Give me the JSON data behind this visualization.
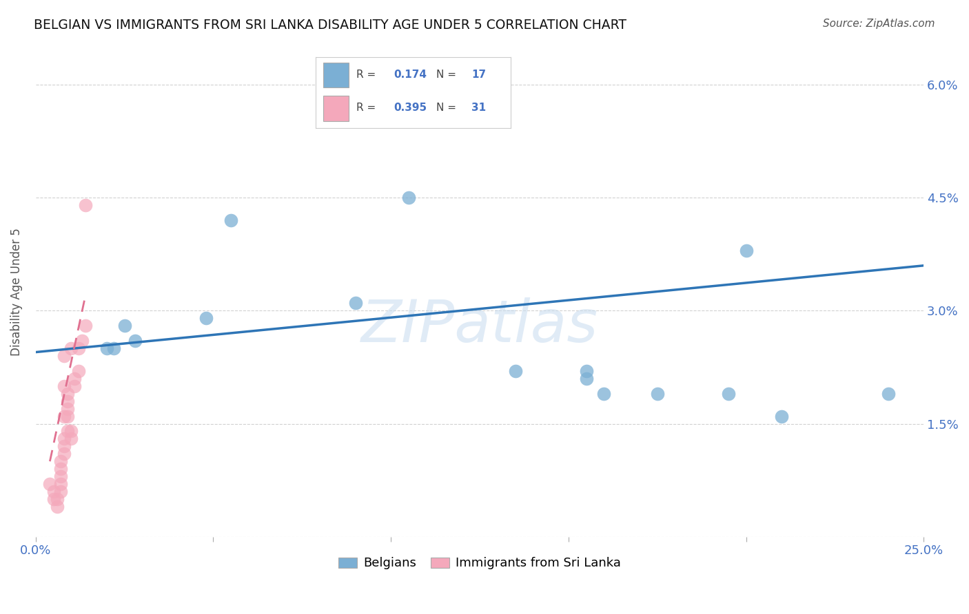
{
  "title": "BELGIAN VS IMMIGRANTS FROM SRI LANKA DISABILITY AGE UNDER 5 CORRELATION CHART",
  "source": "Source: ZipAtlas.com",
  "ylabel_label": "Disability Age Under 5",
  "watermark": "ZIPatlas",
  "xlim": [
    0.0,
    0.25
  ],
  "ylim": [
    0.0,
    0.065
  ],
  "xticks": [
    0.0,
    0.05,
    0.1,
    0.15,
    0.2,
    0.25
  ],
  "yticks": [
    0.0,
    0.015,
    0.03,
    0.045,
    0.06
  ],
  "ytick_labels": [
    "",
    "1.5%",
    "3.0%",
    "4.5%",
    "6.0%"
  ],
  "xtick_labels": [
    "0.0%",
    "",
    "",
    "",
    "",
    "25.0%"
  ],
  "blue_color": "#7BAFD4",
  "pink_color": "#F4A8BB",
  "trendline_blue_color": "#2E75B6",
  "trendline_pink_color": "#E07090",
  "belgians_x": [
    0.02,
    0.022,
    0.025,
    0.028,
    0.048,
    0.055,
    0.09,
    0.105,
    0.135,
    0.155,
    0.155,
    0.16,
    0.175,
    0.195,
    0.21,
    0.24,
    0.2
  ],
  "belgians_y": [
    0.025,
    0.025,
    0.028,
    0.026,
    0.029,
    0.042,
    0.031,
    0.045,
    0.022,
    0.022,
    0.021,
    0.019,
    0.019,
    0.019,
    0.016,
    0.019,
    0.038
  ],
  "srilanka_x": [
    0.004,
    0.005,
    0.005,
    0.006,
    0.006,
    0.007,
    0.007,
    0.007,
    0.007,
    0.007,
    0.008,
    0.008,
    0.008,
    0.008,
    0.008,
    0.008,
    0.009,
    0.009,
    0.009,
    0.009,
    0.009,
    0.01,
    0.01,
    0.01,
    0.011,
    0.011,
    0.012,
    0.012,
    0.013,
    0.014,
    0.014
  ],
  "srilanka_y": [
    0.007,
    0.005,
    0.006,
    0.004,
    0.005,
    0.006,
    0.007,
    0.008,
    0.009,
    0.01,
    0.011,
    0.012,
    0.013,
    0.016,
    0.02,
    0.024,
    0.014,
    0.016,
    0.017,
    0.018,
    0.019,
    0.013,
    0.014,
    0.025,
    0.02,
    0.021,
    0.022,
    0.025,
    0.026,
    0.028,
    0.044
  ],
  "blue_trendline_x": [
    0.0,
    0.25
  ],
  "blue_trendline_y": [
    0.0245,
    0.036
  ],
  "pink_trendline_x": [
    0.004,
    0.014
  ],
  "pink_trendline_y": [
    0.01,
    0.032
  ],
  "background_color": "#FFFFFF",
  "grid_color": "#CCCCCC"
}
